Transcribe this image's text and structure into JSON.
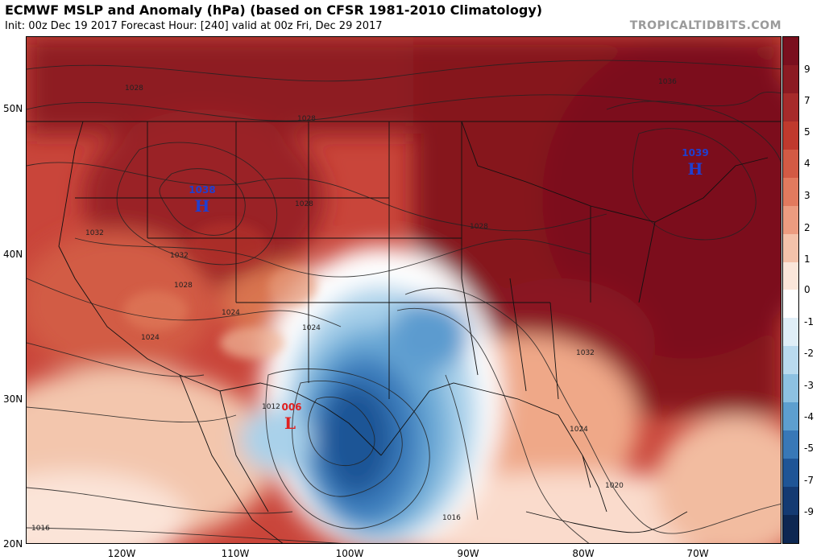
{
  "header": {
    "title": "ECMWF MSLP and Anomaly (hPa) (based on CFSR 1981-2010 Climatology)",
    "subtitle": "Init: 00z Dec 19 2017   Forecast Hour: [240]   valid at 00z Fri, Dec 29 2017",
    "brand": "TROPICALTIDBITS.COM"
  },
  "axes": {
    "lat_labels": [
      "50N",
      "40N",
      "30N",
      "20N"
    ],
    "lon_labels": [
      "120W",
      "110W",
      "100W",
      "90W",
      "80W",
      "70W"
    ]
  },
  "colorbar": {
    "labels": [
      "9",
      "7",
      "5",
      "4",
      "3",
      "2",
      "1",
      "0",
      "-1",
      "-2",
      "-3",
      "-4",
      "-5",
      "-7",
      "-9"
    ],
    "colors": [
      "#7a0f1e",
      "#8c1a22",
      "#a62a2a",
      "#c0392d",
      "#d35a44",
      "#e27a5e",
      "#ec9c80",
      "#f4c2aa",
      "#fbe6da",
      "#ffffff",
      "#dfeef7",
      "#b9daee",
      "#8dc1e1",
      "#5d9fcf",
      "#3878b7",
      "#1f5596",
      "#143a72",
      "#0d2752"
    ]
  },
  "pressure_centers": [
    {
      "type": "H",
      "value": "1038",
      "color": "#1f3fd1"
    },
    {
      "type": "H",
      "value": "1039",
      "color": "#1f3fd1"
    },
    {
      "type": "L",
      "value": "006",
      "color": "#e02020"
    }
  ],
  "isobar_labels": [
    "1028",
    "1028",
    "1036",
    "1028",
    "1032",
    "1028",
    "1032",
    "1028",
    "1024",
    "1024",
    "1024",
    "1032",
    "1024",
    "1012",
    "1016",
    "1016",
    "1020"
  ]
}
